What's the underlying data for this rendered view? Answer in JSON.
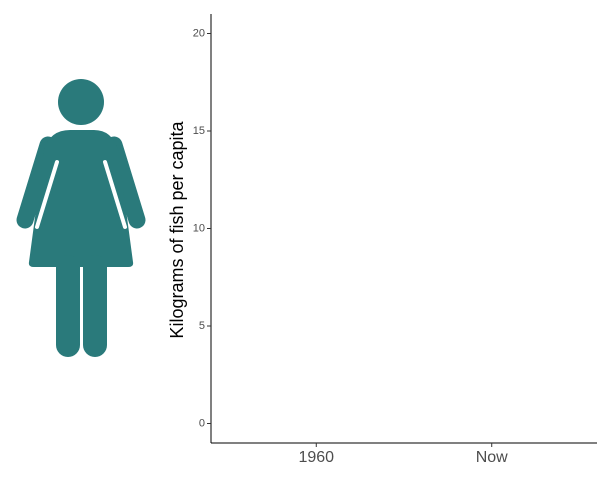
{
  "chart_data": {
    "type": "bar",
    "y_label": "Kilograms of fish per capita",
    "categories": [
      "1960",
      "Now"
    ],
    "ylim": [
      -1,
      21
    ],
    "yticks": [
      0,
      5,
      10,
      15,
      20
    ]
  }
}
